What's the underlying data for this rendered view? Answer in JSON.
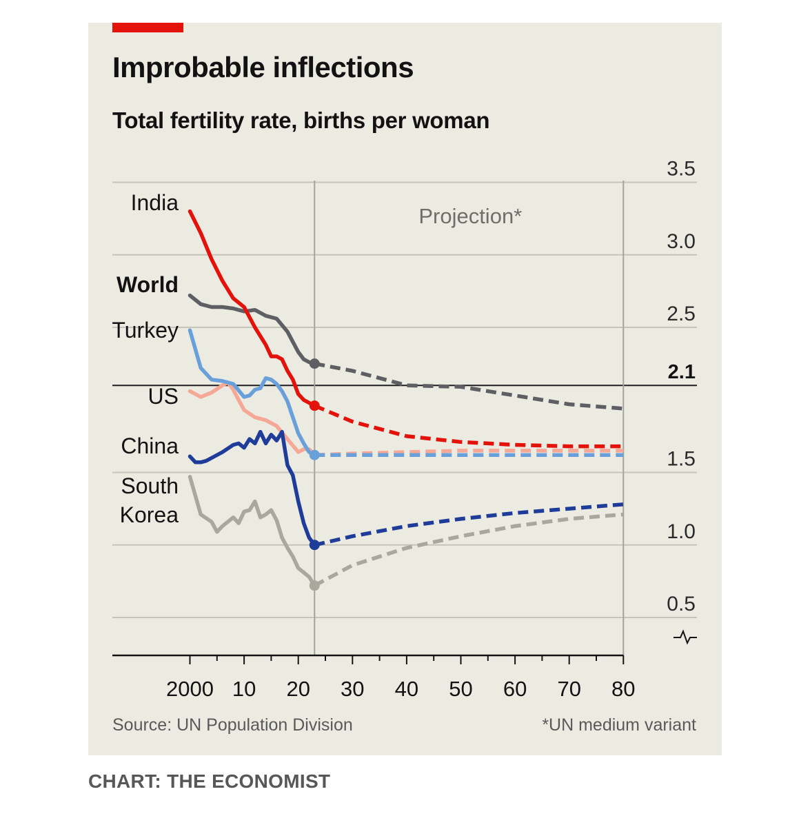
{
  "title": "Improbable inflections",
  "subtitle": "Total fertility rate, births per woman",
  "source": "Source: UN Population Division",
  "footnote": "*UN medium variant",
  "credit": "CHART: THE ECONOMIST",
  "colors": {
    "background": "#ecebe2",
    "brand_red": "#e3120b",
    "india": "#e3120b",
    "world": "#5e5f63",
    "turkey": "#6aa0d9",
    "us": "#f5a896",
    "china": "#1f3c99",
    "south_korea": "#a8a99c"
  },
  "chart_data": {
    "type": "line",
    "title": "Improbable inflections",
    "subtitle": "Total fertility rate, births per woman",
    "xlabel": "",
    "ylabel": "",
    "xlim": [
      1980,
      2080
    ],
    "ylim": [
      0.25,
      3.5
    ],
    "y_axis_position": "right",
    "y_axis_break": true,
    "x_ticks": [
      {
        "value": 2000,
        "label": "2000"
      },
      {
        "value": 2010,
        "label": "10"
      },
      {
        "value": 2020,
        "label": "20"
      },
      {
        "value": 2030,
        "label": "30"
      },
      {
        "value": 2040,
        "label": "40"
      },
      {
        "value": 2050,
        "label": "50"
      },
      {
        "value": 2060,
        "label": "60"
      },
      {
        "value": 2070,
        "label": "70"
      },
      {
        "value": 2080,
        "label": "80"
      }
    ],
    "y_ticks": [
      {
        "value": 0.5,
        "label": "0.5"
      },
      {
        "value": 1.0,
        "label": "1.0"
      },
      {
        "value": 1.5,
        "label": "1.5"
      },
      {
        "value": 2.1,
        "label": "2.1",
        "bold": true
      },
      {
        "value": 2.5,
        "label": "2.5"
      },
      {
        "value": 3.0,
        "label": "3.0"
      },
      {
        "value": 3.5,
        "label": "3.5"
      }
    ],
    "reference_line": {
      "value": 2.1,
      "label": "2.1"
    },
    "projection_start": 2023,
    "projection_label": "Projection*",
    "grid": true,
    "legend": "direct labels at left",
    "series": [
      {
        "name": "India",
        "key": "india",
        "label_bold": false,
        "historical": [
          [
            2000,
            3.3
          ],
          [
            2002,
            3.15
          ],
          [
            2004,
            2.97
          ],
          [
            2006,
            2.82
          ],
          [
            2008,
            2.7
          ],
          [
            2010,
            2.64
          ],
          [
            2012,
            2.5
          ],
          [
            2014,
            2.38
          ],
          [
            2015,
            2.3
          ],
          [
            2016,
            2.3
          ],
          [
            2017,
            2.28
          ],
          [
            2018,
            2.2
          ],
          [
            2019,
            2.14
          ],
          [
            2020,
            2.04
          ],
          [
            2021,
            2.0
          ],
          [
            2022,
            1.98
          ],
          [
            2023,
            1.96
          ]
        ],
        "projection": [
          [
            2023,
            1.96
          ],
          [
            2030,
            1.85
          ],
          [
            2040,
            1.75
          ],
          [
            2050,
            1.71
          ],
          [
            2060,
            1.69
          ],
          [
            2070,
            1.68
          ],
          [
            2080,
            1.68
          ]
        ]
      },
      {
        "name": "World",
        "key": "world",
        "label_bold": true,
        "historical": [
          [
            2000,
            2.72
          ],
          [
            2002,
            2.66
          ],
          [
            2004,
            2.64
          ],
          [
            2006,
            2.64
          ],
          [
            2008,
            2.63
          ],
          [
            2010,
            2.61
          ],
          [
            2012,
            2.62
          ],
          [
            2014,
            2.58
          ],
          [
            2016,
            2.56
          ],
          [
            2018,
            2.47
          ],
          [
            2020,
            2.33
          ],
          [
            2021,
            2.28
          ],
          [
            2022,
            2.26
          ],
          [
            2023,
            2.25
          ]
        ],
        "projection": [
          [
            2023,
            2.25
          ],
          [
            2030,
            2.2
          ],
          [
            2040,
            2.1
          ],
          [
            2050,
            2.09
          ],
          [
            2060,
            2.03
          ],
          [
            2070,
            1.97
          ],
          [
            2080,
            1.94
          ]
        ]
      },
      {
        "name": "Turkey",
        "key": "turkey",
        "label_bold": false,
        "historical": [
          [
            2000,
            2.48
          ],
          [
            2002,
            2.22
          ],
          [
            2004,
            2.14
          ],
          [
            2006,
            2.13
          ],
          [
            2008,
            2.11
          ],
          [
            2010,
            2.02
          ],
          [
            2011,
            2.03
          ],
          [
            2012,
            2.07
          ],
          [
            2013,
            2.08
          ],
          [
            2014,
            2.15
          ],
          [
            2015,
            2.14
          ],
          [
            2016,
            2.11
          ],
          [
            2017,
            2.06
          ],
          [
            2018,
            1.99
          ],
          [
            2019,
            1.88
          ],
          [
            2020,
            1.77
          ],
          [
            2021,
            1.7
          ],
          [
            2022,
            1.64
          ],
          [
            2023,
            1.62
          ]
        ],
        "projection": [
          [
            2023,
            1.62
          ],
          [
            2030,
            1.62
          ],
          [
            2040,
            1.62
          ],
          [
            2050,
            1.62
          ],
          [
            2060,
            1.62
          ],
          [
            2070,
            1.62
          ],
          [
            2080,
            1.62
          ]
        ]
      },
      {
        "name": "US",
        "key": "us",
        "label_bold": false,
        "historical": [
          [
            2000,
            2.06
          ],
          [
            2002,
            2.02
          ],
          [
            2004,
            2.05
          ],
          [
            2006,
            2.1
          ],
          [
            2007,
            2.12
          ],
          [
            2008,
            2.07
          ],
          [
            2009,
            2.0
          ],
          [
            2010,
            1.93
          ],
          [
            2012,
            1.88
          ],
          [
            2014,
            1.86
          ],
          [
            2016,
            1.82
          ],
          [
            2018,
            1.73
          ],
          [
            2020,
            1.64
          ],
          [
            2021,
            1.66
          ],
          [
            2022,
            1.66
          ],
          [
            2023,
            1.62
          ]
        ],
        "projection": [
          [
            2023,
            1.62
          ],
          [
            2030,
            1.63
          ],
          [
            2040,
            1.64
          ],
          [
            2050,
            1.65
          ],
          [
            2060,
            1.65
          ],
          [
            2070,
            1.65
          ],
          [
            2080,
            1.65
          ]
        ]
      },
      {
        "name": "China",
        "key": "china",
        "label_bold": false,
        "historical": [
          [
            2000,
            1.61
          ],
          [
            2001,
            1.57
          ],
          [
            2002,
            1.57
          ],
          [
            2003,
            1.58
          ],
          [
            2004,
            1.6
          ],
          [
            2006,
            1.64
          ],
          [
            2008,
            1.69
          ],
          [
            2009,
            1.7
          ],
          [
            2010,
            1.67
          ],
          [
            2011,
            1.73
          ],
          [
            2012,
            1.7
          ],
          [
            2013,
            1.78
          ],
          [
            2014,
            1.7
          ],
          [
            2015,
            1.76
          ],
          [
            2016,
            1.72
          ],
          [
            2017,
            1.78
          ],
          [
            2018,
            1.55
          ],
          [
            2019,
            1.48
          ],
          [
            2020,
            1.3
          ],
          [
            2021,
            1.15
          ],
          [
            2022,
            1.05
          ],
          [
            2023,
            1.0
          ]
        ],
        "projection": [
          [
            2023,
            1.0
          ],
          [
            2030,
            1.06
          ],
          [
            2040,
            1.13
          ],
          [
            2050,
            1.18
          ],
          [
            2060,
            1.22
          ],
          [
            2070,
            1.25
          ],
          [
            2080,
            1.28
          ]
        ]
      },
      {
        "name": "South Korea",
        "key": "south_korea",
        "label_bold": false,
        "historical": [
          [
            2000,
            1.47
          ],
          [
            2002,
            1.21
          ],
          [
            2004,
            1.16
          ],
          [
            2005,
            1.09
          ],
          [
            2006,
            1.13
          ],
          [
            2008,
            1.19
          ],
          [
            2009,
            1.15
          ],
          [
            2010,
            1.23
          ],
          [
            2011,
            1.24
          ],
          [
            2012,
            1.3
          ],
          [
            2013,
            1.19
          ],
          [
            2014,
            1.21
          ],
          [
            2015,
            1.24
          ],
          [
            2016,
            1.17
          ],
          [
            2017,
            1.05
          ],
          [
            2018,
            0.98
          ],
          [
            2019,
            0.92
          ],
          [
            2020,
            0.84
          ],
          [
            2021,
            0.81
          ],
          [
            2022,
            0.78
          ],
          [
            2023,
            0.72
          ]
        ],
        "projection": [
          [
            2023,
            0.72
          ],
          [
            2030,
            0.86
          ],
          [
            2040,
            0.98
          ],
          [
            2050,
            1.06
          ],
          [
            2060,
            1.13
          ],
          [
            2070,
            1.18
          ],
          [
            2080,
            1.21
          ]
        ]
      }
    ]
  }
}
